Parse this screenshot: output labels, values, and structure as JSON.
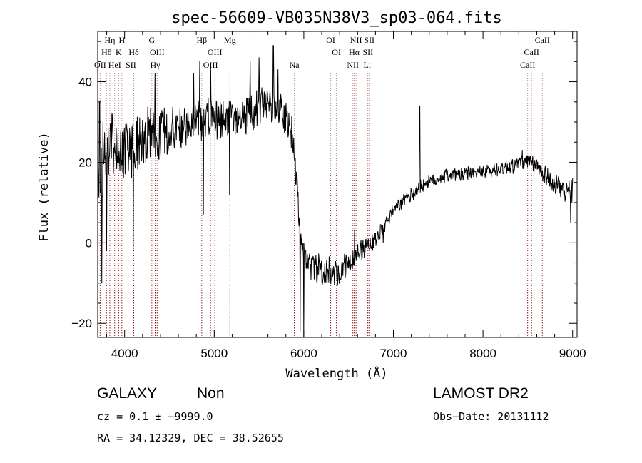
{
  "chart_data": {
    "type": "line",
    "title": "spec-56609-VB035N38V3_sp03-064.fits",
    "xlabel": "Wavelength (Å)",
    "ylabel": "Flux (relative)",
    "xlim": [
      3700,
      9050
    ],
    "ylim": [
      -23.5,
      52.5
    ],
    "xticks": [
      4000,
      5000,
      6000,
      7000,
      8000,
      9000
    ],
    "yticks": [
      -20,
      0,
      20,
      40
    ],
    "grid": false,
    "continuum": [
      [
        3700,
        16
      ],
      [
        3760,
        18
      ],
      [
        3800,
        22
      ],
      [
        3900,
        24
      ],
      [
        4000,
        23
      ],
      [
        4100,
        24
      ],
      [
        4200,
        25
      ],
      [
        4300,
        27
      ],
      [
        4400,
        27
      ],
      [
        4500,
        28
      ],
      [
        4600,
        29
      ],
      [
        4700,
        29
      ],
      [
        4800,
        30
      ],
      [
        4900,
        30
      ],
      [
        5000,
        30.5
      ],
      [
        5100,
        31
      ],
      [
        5200,
        31
      ],
      [
        5300,
        31
      ],
      [
        5400,
        32
      ],
      [
        5500,
        34
      ],
      [
        5600,
        35
      ],
      [
        5700,
        34
      ],
      [
        5800,
        31
      ],
      [
        5850,
        29
      ],
      [
        5880,
        25
      ],
      [
        5920,
        15
      ],
      [
        5960,
        2
      ],
      [
        6000,
        -3
      ],
      [
        6100,
        -6
      ],
      [
        6200,
        -7
      ],
      [
        6300,
        -7
      ],
      [
        6400,
        -7
      ],
      [
        6500,
        -5
      ],
      [
        6600,
        -3
      ],
      [
        6700,
        0
      ],
      [
        6800,
        1
      ],
      [
        6900,
        4
      ],
      [
        7000,
        8
      ],
      [
        7100,
        10
      ],
      [
        7200,
        12
      ],
      [
        7300,
        14
      ],
      [
        7400,
        15
      ],
      [
        7500,
        16
      ],
      [
        7600,
        17
      ],
      [
        7700,
        17
      ],
      [
        7800,
        17
      ],
      [
        7900,
        17.5
      ],
      [
        8000,
        17.5
      ],
      [
        8100,
        18
      ],
      [
        8200,
        18.5
      ],
      [
        8300,
        19
      ],
      [
        8400,
        20
      ],
      [
        8500,
        20
      ],
      [
        8600,
        19
      ],
      [
        8700,
        17
      ],
      [
        8800,
        14
      ],
      [
        8900,
        13
      ],
      [
        9000,
        12
      ]
    ],
    "features": [
      {
        "x": 3720,
        "y": 35
      },
      {
        "x": 3745,
        "y": -10
      },
      {
        "x": 3760,
        "y": 30
      },
      {
        "x": 3800,
        "y": -2
      },
      {
        "x": 3860,
        "y": 32
      },
      {
        "x": 4095,
        "y": -2
      },
      {
        "x": 4340,
        "y": 42
      },
      {
        "x": 4770,
        "y": 42
      },
      {
        "x": 4840,
        "y": 45
      },
      {
        "x": 4880,
        "y": 7
      },
      {
        "x": 4960,
        "y": 44
      },
      {
        "x": 5170,
        "y": 12
      },
      {
        "x": 5400,
        "y": 45
      },
      {
        "x": 5500,
        "y": 46
      },
      {
        "x": 5660,
        "y": 49
      },
      {
        "x": 5710,
        "y": 43
      },
      {
        "x": 5960,
        "y": -22
      },
      {
        "x": 6000,
        "y": -24
      },
      {
        "x": 6565,
        "y": 3
      },
      {
        "x": 6885,
        "y": 0
      },
      {
        "x": 7293,
        "y": 34
      },
      {
        "x": 8440,
        "y": 23
      },
      {
        "x": 8980,
        "y": 5
      },
      {
        "x": 9000,
        "y": 16
      }
    ],
    "noise_amplitude": [
      [
        3700,
        7
      ],
      [
        4200,
        7
      ],
      [
        4700,
        5
      ],
      [
        5800,
        4
      ],
      [
        6000,
        3.5
      ],
      [
        6600,
        2.5
      ],
      [
        7000,
        1.5
      ],
      [
        8000,
        1.5
      ],
      [
        8600,
        2
      ],
      [
        9000,
        3
      ]
    ],
    "emission_lines": [
      {
        "wavelength": 3727,
        "label": "OII",
        "row": 3
      },
      {
        "wavelength": 3798,
        "label": "Hθ",
        "row": 2
      },
      {
        "wavelength": 3835,
        "label": "Hη",
        "row": 1
      },
      {
        "wavelength": 3889,
        "label": "HeI",
        "row": 3
      },
      {
        "wavelength": 3934,
        "label": "K",
        "row": 2
      },
      {
        "wavelength": 3969,
        "label": "H",
        "row": 1
      },
      {
        "wavelength": 4070,
        "label": "SII",
        "row": 3
      },
      {
        "wavelength": 4102,
        "label": "Hδ",
        "row": 2
      },
      {
        "wavelength": 4304,
        "label": "G",
        "row": 1
      },
      {
        "wavelength": 4341,
        "label": "Hγ",
        "row": 3
      },
      {
        "wavelength": 4363,
        "label": "OIII",
        "row": 2
      },
      {
        "wavelength": 4861,
        "label": "Hβ",
        "row": 1
      },
      {
        "wavelength": 4959,
        "label": "OIII",
        "row": 3
      },
      {
        "wavelength": 5007,
        "label": "OIII",
        "row": 2
      },
      {
        "wavelength": 5175,
        "label": "Mg",
        "row": 1
      },
      {
        "wavelength": 5894,
        "label": "Na",
        "row": 3
      },
      {
        "wavelength": 6300,
        "label": "OI",
        "row": 1
      },
      {
        "wavelength": 6364,
        "label": "OI",
        "row": 2
      },
      {
        "wavelength": 6548,
        "label": "NII",
        "row": 3
      },
      {
        "wavelength": 6563,
        "label": "Hα",
        "row": 2
      },
      {
        "wavelength": 6583,
        "label": "NII",
        "row": 1
      },
      {
        "wavelength": 6708,
        "label": "Li",
        "row": 3
      },
      {
        "wavelength": 6716,
        "label": "SII",
        "row": 2
      },
      {
        "wavelength": 6731,
        "label": "SII",
        "row": 1
      },
      {
        "wavelength": 8498,
        "label": "CaII",
        "row": 3
      },
      {
        "wavelength": 8542,
        "label": "CaII",
        "row": 2
      },
      {
        "wavelength": 8662,
        "label": "CaII",
        "row": 1
      }
    ]
  },
  "info": {
    "class_label": "GALAXY",
    "subclass_label": "Non",
    "survey_label": "LAMOST DR2",
    "cz_text": "cz = 0.1 ± −9999.0",
    "obs_date_text": "Obs−Date: 20131112",
    "coords_text": "RA =  34.12329, DEC =  38.52655"
  }
}
